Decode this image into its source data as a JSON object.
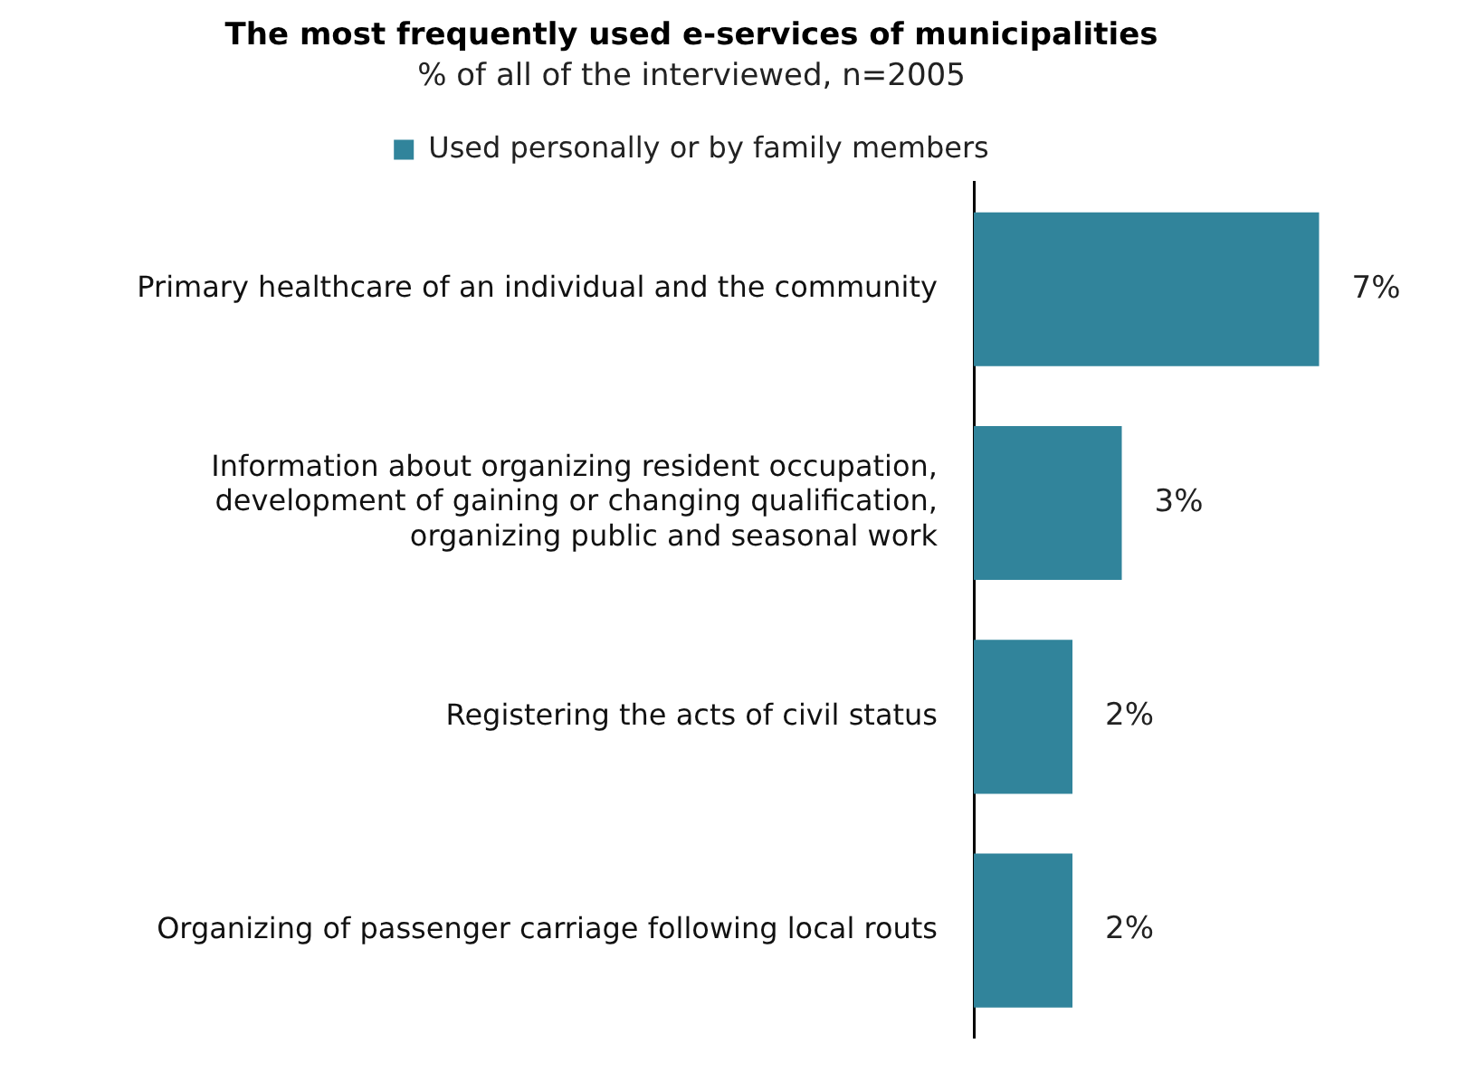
{
  "chart_data": {
    "type": "bar",
    "orientation": "horizontal",
    "title": "The most frequently used e-services of municipalities",
    "subtitle": "% of all of the interviewed, n=2005",
    "categories": [
      "Primary healthcare of an individual and the community",
      "Information about organizing resident occupation, development of gaining or changing qualification, organizing public and seasonal work",
      "Registering the acts of civil status",
      "Organizing of passenger carriage following local routs"
    ],
    "series": [
      {
        "name": "Used personally or by family members",
        "color": "#31849b",
        "values": [
          7,
          3,
          2,
          2
        ],
        "value_labels": [
          "7%",
          "3%",
          "2%",
          "2%"
        ]
      }
    ],
    "legend": "top",
    "grid": false,
    "tick_labels": "y"
  }
}
